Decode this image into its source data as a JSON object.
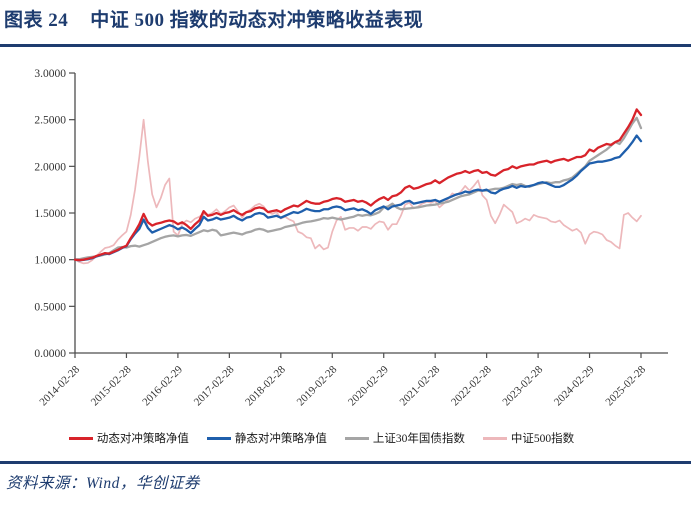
{
  "figure": {
    "label": "图表 24",
    "title": "中证 500 指数的动态对冲策略收益表现"
  },
  "source": {
    "text": "资料来源：Wind，华创证券"
  },
  "colors": {
    "accent_navy": "#1E3C6F",
    "axis": "#4d4d4d",
    "tick_text": "#333333"
  },
  "chart_data": {
    "type": "line",
    "title": "",
    "xlabel": "",
    "ylabel": "",
    "ylim": [
      0.0,
      3.0
    ],
    "y_tick_labels": [
      "0.0000",
      "0.5000",
      "1.0000",
      "1.5000",
      "2.0000",
      "2.5000",
      "3.0000"
    ],
    "x_tick_labels": [
      "2014-02-28",
      "2015-02-28",
      "2016-02-29",
      "2017-02-28",
      "2018-02-28",
      "2019-02-28",
      "2020-02-29",
      "2021-02-28",
      "2022-02-28",
      "2023-02-28",
      "2024-02-29",
      "2025-02-28"
    ],
    "grid": false,
    "legend_position": "bottom",
    "x_start": "2014-02",
    "x_step": "1 month",
    "series": [
      {
        "name": "动态对冲策略净值",
        "color": "#D8232A",
        "values": [
          1.0,
          0.995,
          1.0,
          1.01,
          1.02,
          1.04,
          1.055,
          1.07,
          1.065,
          1.085,
          1.105,
          1.13,
          1.15,
          1.23,
          1.3,
          1.38,
          1.49,
          1.4,
          1.365,
          1.385,
          1.395,
          1.41,
          1.42,
          1.41,
          1.38,
          1.4,
          1.37,
          1.33,
          1.38,
          1.42,
          1.52,
          1.47,
          1.48,
          1.5,
          1.48,
          1.5,
          1.51,
          1.53,
          1.5,
          1.48,
          1.51,
          1.52,
          1.55,
          1.56,
          1.55,
          1.51,
          1.52,
          1.53,
          1.51,
          1.54,
          1.56,
          1.58,
          1.57,
          1.6,
          1.63,
          1.61,
          1.6,
          1.6,
          1.62,
          1.63,
          1.65,
          1.66,
          1.65,
          1.62,
          1.63,
          1.64,
          1.62,
          1.63,
          1.61,
          1.58,
          1.62,
          1.65,
          1.67,
          1.64,
          1.68,
          1.69,
          1.72,
          1.77,
          1.79,
          1.76,
          1.77,
          1.79,
          1.81,
          1.82,
          1.85,
          1.82,
          1.85,
          1.88,
          1.9,
          1.92,
          1.93,
          1.95,
          1.93,
          1.95,
          1.96,
          1.93,
          1.94,
          1.91,
          1.9,
          1.93,
          1.96,
          1.97,
          2.0,
          1.98,
          2.0,
          2.01,
          2.02,
          2.02,
          2.04,
          2.05,
          2.06,
          2.04,
          2.06,
          2.07,
          2.08,
          2.06,
          2.08,
          2.1,
          2.1,
          2.12,
          2.18,
          2.16,
          2.2,
          2.22,
          2.24,
          2.23,
          2.26,
          2.28,
          2.35,
          2.42,
          2.5,
          2.61,
          2.55
        ]
      },
      {
        "name": "静态对冲策略净值",
        "color": "#1F5FAC",
        "values": [
          1.0,
          0.993,
          0.998,
          1.005,
          1.015,
          1.035,
          1.05,
          1.065,
          1.06,
          1.08,
          1.1,
          1.125,
          1.145,
          1.22,
          1.28,
          1.33,
          1.43,
          1.34,
          1.29,
          1.31,
          1.33,
          1.35,
          1.37,
          1.355,
          1.325,
          1.345,
          1.32,
          1.285,
          1.33,
          1.37,
          1.46,
          1.42,
          1.43,
          1.45,
          1.43,
          1.44,
          1.45,
          1.47,
          1.44,
          1.42,
          1.45,
          1.46,
          1.49,
          1.5,
          1.49,
          1.45,
          1.46,
          1.47,
          1.45,
          1.47,
          1.49,
          1.51,
          1.5,
          1.52,
          1.545,
          1.53,
          1.52,
          1.52,
          1.54,
          1.54,
          1.56,
          1.57,
          1.56,
          1.53,
          1.54,
          1.55,
          1.53,
          1.54,
          1.52,
          1.49,
          1.53,
          1.55,
          1.57,
          1.54,
          1.57,
          1.58,
          1.59,
          1.62,
          1.63,
          1.6,
          1.61,
          1.62,
          1.63,
          1.63,
          1.64,
          1.62,
          1.64,
          1.66,
          1.68,
          1.7,
          1.71,
          1.73,
          1.72,
          1.74,
          1.75,
          1.74,
          1.75,
          1.72,
          1.71,
          1.74,
          1.76,
          1.77,
          1.79,
          1.77,
          1.79,
          1.78,
          1.79,
          1.8,
          1.82,
          1.83,
          1.82,
          1.8,
          1.78,
          1.78,
          1.8,
          1.83,
          1.86,
          1.9,
          1.95,
          1.99,
          2.03,
          2.04,
          2.05,
          2.05,
          2.06,
          2.07,
          2.09,
          2.1,
          2.15,
          2.2,
          2.26,
          2.33,
          2.27
        ]
      },
      {
        "name": "上证30年国债指数",
        "color": "#A5A5A5",
        "values": [
          1.0,
          1.005,
          1.015,
          1.025,
          1.03,
          1.035,
          1.045,
          1.055,
          1.07,
          1.1,
          1.13,
          1.135,
          1.13,
          1.145,
          1.15,
          1.14,
          1.155,
          1.17,
          1.19,
          1.21,
          1.23,
          1.245,
          1.255,
          1.26,
          1.25,
          1.26,
          1.265,
          1.255,
          1.275,
          1.295,
          1.315,
          1.305,
          1.32,
          1.31,
          1.26,
          1.27,
          1.28,
          1.29,
          1.28,
          1.27,
          1.29,
          1.3,
          1.32,
          1.33,
          1.32,
          1.3,
          1.31,
          1.32,
          1.33,
          1.35,
          1.36,
          1.37,
          1.38,
          1.395,
          1.405,
          1.41,
          1.42,
          1.43,
          1.445,
          1.44,
          1.45,
          1.44,
          1.43,
          1.44,
          1.45,
          1.46,
          1.48,
          1.47,
          1.48,
          1.475,
          1.49,
          1.51,
          1.56,
          1.57,
          1.6,
          1.56,
          1.54,
          1.545,
          1.55,
          1.555,
          1.56,
          1.57,
          1.58,
          1.585,
          1.59,
          1.6,
          1.61,
          1.62,
          1.64,
          1.66,
          1.68,
          1.69,
          1.7,
          1.72,
          1.74,
          1.74,
          1.74,
          1.75,
          1.76,
          1.76,
          1.77,
          1.79,
          1.81,
          1.8,
          1.81,
          1.79,
          1.78,
          1.8,
          1.81,
          1.82,
          1.83,
          1.82,
          1.83,
          1.83,
          1.85,
          1.86,
          1.88,
          1.92,
          1.96,
          2.0,
          2.06,
          2.09,
          2.12,
          2.15,
          2.18,
          2.22,
          2.26,
          2.24,
          2.3,
          2.38,
          2.46,
          2.52,
          2.41
        ]
      },
      {
        "name": "中证500指数",
        "color": "#EDB8BB",
        "values": [
          1.0,
          0.975,
          0.96,
          0.965,
          0.995,
          1.04,
          1.085,
          1.125,
          1.135,
          1.155,
          1.215,
          1.26,
          1.3,
          1.48,
          1.75,
          2.1,
          2.5,
          2.05,
          1.7,
          1.56,
          1.66,
          1.8,
          1.87,
          1.3,
          1.26,
          1.38,
          1.42,
          1.4,
          1.44,
          1.46,
          1.49,
          1.48,
          1.5,
          1.54,
          1.49,
          1.52,
          1.56,
          1.58,
          1.52,
          1.45,
          1.51,
          1.54,
          1.58,
          1.6,
          1.57,
          1.51,
          1.49,
          1.51,
          1.44,
          1.46,
          1.43,
          1.41,
          1.3,
          1.28,
          1.24,
          1.23,
          1.12,
          1.16,
          1.11,
          1.13,
          1.3,
          1.42,
          1.46,
          1.32,
          1.34,
          1.34,
          1.31,
          1.35,
          1.35,
          1.33,
          1.38,
          1.41,
          1.4,
          1.32,
          1.38,
          1.38,
          1.47,
          1.59,
          1.61,
          1.55,
          1.57,
          1.6,
          1.62,
          1.61,
          1.63,
          1.56,
          1.6,
          1.65,
          1.71,
          1.69,
          1.73,
          1.79,
          1.74,
          1.79,
          1.85,
          1.69,
          1.64,
          1.47,
          1.39,
          1.48,
          1.59,
          1.55,
          1.51,
          1.39,
          1.41,
          1.44,
          1.42,
          1.48,
          1.46,
          1.45,
          1.44,
          1.41,
          1.4,
          1.42,
          1.37,
          1.34,
          1.31,
          1.33,
          1.29,
          1.17,
          1.27,
          1.3,
          1.29,
          1.27,
          1.21,
          1.19,
          1.15,
          1.12,
          1.48,
          1.5,
          1.45,
          1.41,
          1.47
        ]
      }
    ]
  }
}
